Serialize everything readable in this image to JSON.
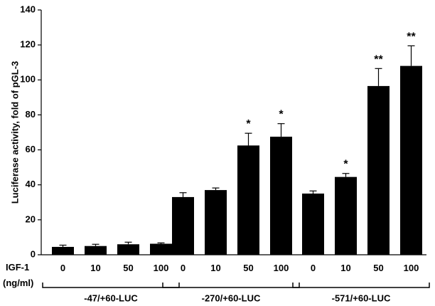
{
  "chart_data": {
    "type": "bar",
    "ylabel": "Luciferase activity, fold of pGL-3",
    "ylim": [
      0,
      140
    ],
    "yticks": [
      0,
      20,
      40,
      60,
      80,
      100,
      120,
      140
    ],
    "row_label": "IGF-1",
    "row_unit": "(ng/ml)",
    "bar_color": "#000000",
    "groups": [
      {
        "name": "-47/+60-LUC",
        "bars": [
          {
            "category": "0",
            "value": 4.5,
            "error": 1.0,
            "sig": ""
          },
          {
            "category": "10",
            "value": 5.0,
            "error": 1.0,
            "sig": ""
          },
          {
            "category": "50",
            "value": 6.0,
            "error": 1.2,
            "sig": ""
          },
          {
            "category": "100",
            "value": 6.3,
            "error": 0.5,
            "sig": ""
          }
        ]
      },
      {
        "name": "-270/+60-LUC",
        "bars": [
          {
            "category": "0",
            "value": 33.0,
            "error": 2.5,
            "sig": ""
          },
          {
            "category": "10",
            "value": 37.0,
            "error": 1.2,
            "sig": ""
          },
          {
            "category": "50",
            "value": 62.5,
            "error": 7.0,
            "sig": "*"
          },
          {
            "category": "100",
            "value": 67.5,
            "error": 7.5,
            "sig": "*"
          }
        ]
      },
      {
        "name": "-571/+60-LUC",
        "bars": [
          {
            "category": "0",
            "value": 35.0,
            "error": 1.5,
            "sig": ""
          },
          {
            "category": "10",
            "value": 44.5,
            "error": 2.0,
            "sig": "*"
          },
          {
            "category": "50",
            "value": 96.5,
            "error": 10.0,
            "sig": "**"
          },
          {
            "category": "100",
            "value": 108.0,
            "error": 11.5,
            "sig": "**"
          }
        ]
      }
    ]
  }
}
